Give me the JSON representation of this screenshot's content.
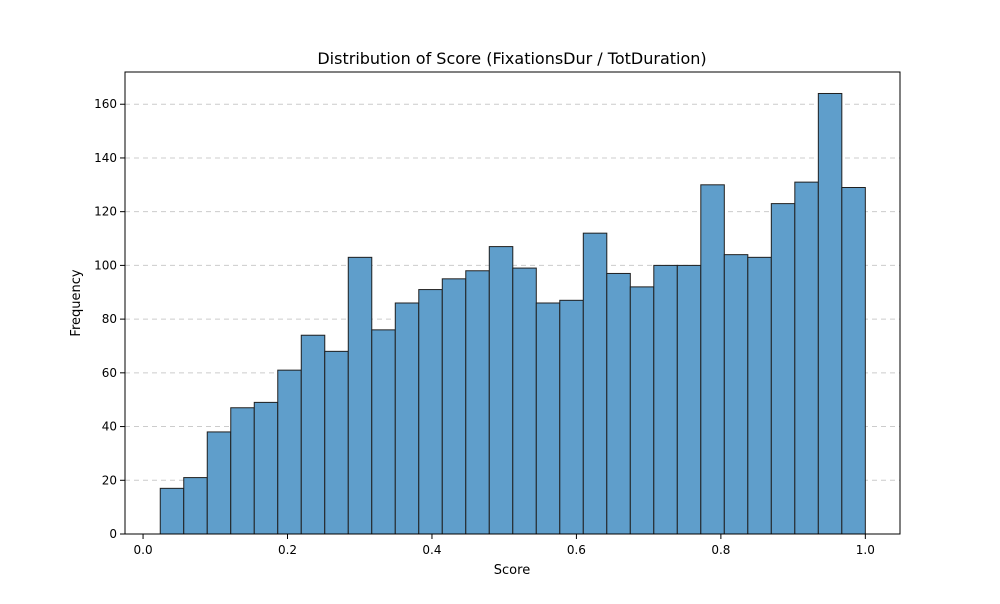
{
  "chart_data": {
    "type": "bar",
    "title": "Distribution of Score (FixationsDur / TotDuration)",
    "xlabel": "Score",
    "ylabel": "Frequency",
    "xlim": [
      -0.025,
      1.048
    ],
    "ylim": [
      0,
      172
    ],
    "xticks": [
      0.0,
      0.2,
      0.4,
      0.6,
      0.8,
      1.0
    ],
    "xtick_labels": [
      "0.0",
      "0.2",
      "0.4",
      "0.6",
      "0.8",
      "1.0"
    ],
    "yticks": [
      0,
      20,
      40,
      60,
      80,
      100,
      120,
      140,
      160
    ],
    "ytick_labels": [
      "0",
      "20",
      "40",
      "60",
      "80",
      "100",
      "120",
      "140",
      "160"
    ],
    "grid": "y-dashed",
    "bin_start": 0.0238,
    "bin_end": 1.0,
    "bins": 30,
    "values": [
      17,
      21,
      38,
      47,
      49,
      61,
      74,
      68,
      103,
      76,
      86,
      91,
      95,
      98,
      107,
      99,
      86,
      87,
      112,
      97,
      92,
      100,
      100,
      130,
      104,
      103,
      123,
      131,
      164,
      129
    ],
    "colors": {
      "bar_fill": "#5f9ecb",
      "bar_edge": "#1f1f1f",
      "grid": "#cccccc",
      "axis": "#000000"
    }
  }
}
